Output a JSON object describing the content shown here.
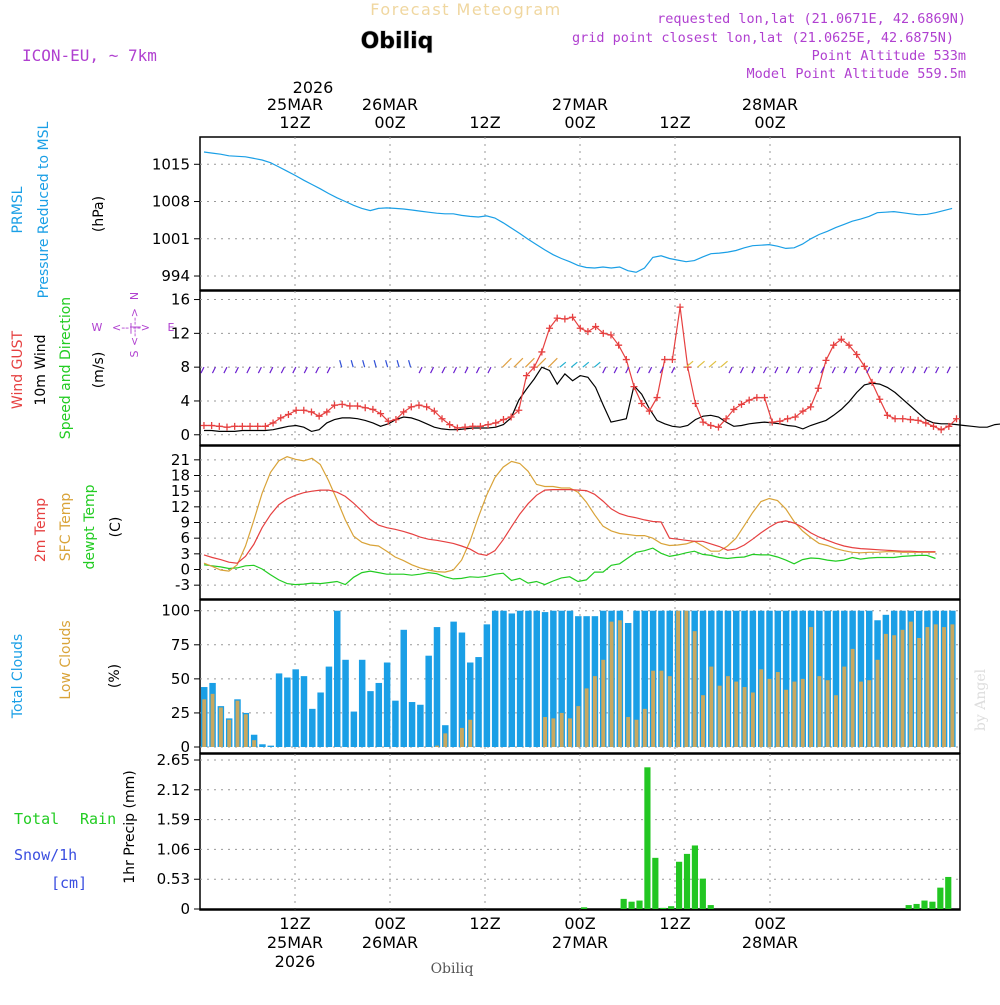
{
  "header": {
    "title": "Forecast Meteogram",
    "location": "Obiliq",
    "model": "ICON-EU, ~ 7km",
    "requested": "requested lon,lat (21.0671E, 42.6869N)",
    "gridpoint": "grid point closest lon,lat (21.0625E, 42.6875N)",
    "point_alt": "Point Altitude 533m",
    "model_alt": "Model Point Altitude 559.5m",
    "footer_location": "Obiliq",
    "credit": "by Angel"
  },
  "colors": {
    "pressure": "#1a9fe6",
    "gust": "#e64040",
    "wind": "#000000",
    "temp2m": "#e64040",
    "sfc": "#d9a338",
    "dew": "#22cc22",
    "total_cloud": "#1a9fe6",
    "low_cloud": "#c8a860",
    "rain": "#22c622",
    "snow": "#3a4ee0",
    "purple": "#b040d0"
  },
  "time_axis": {
    "top_year": "2026",
    "top_labels": [
      {
        "h": 12,
        "l1": "25MAR",
        "l2": "12Z"
      },
      {
        "h": 24,
        "l1": "26MAR",
        "l2": "00Z"
      },
      {
        "h": 36,
        "l1": "",
        "l2": "12Z"
      },
      {
        "h": 48,
        "l1": "27MAR",
        "l2": "00Z"
      },
      {
        "h": 60,
        "l1": "",
        "l2": "12Z"
      },
      {
        "h": 72,
        "l1": "28MAR",
        "l2": "00Z"
      }
    ],
    "bottom_labels": [
      {
        "h": 12,
        "l1": "12Z",
        "l2": "25MAR",
        "l3": "2026"
      },
      {
        "h": 24,
        "l1": "00Z",
        "l2": "26MAR",
        "l3": ""
      },
      {
        "h": 36,
        "l1": "12Z",
        "l2": "",
        "l3": ""
      },
      {
        "h": 48,
        "l1": "00Z",
        "l2": "27MAR",
        "l3": ""
      },
      {
        "h": 60,
        "l1": "12Z",
        "l2": "",
        "l3": ""
      },
      {
        "h": 72,
        "l1": "00Z",
        "l2": "28MAR",
        "l3": ""
      }
    ]
  },
  "chart_data": [
    {
      "type": "line",
      "name": "pressure",
      "label1": "PRMSL",
      "label2": "Pressure Reduced to MSL",
      "unit": "(hPa)",
      "ylim": [
        992.5,
        1019
      ],
      "yticks": [
        994,
        1001,
        1008,
        1015
      ],
      "x_start_hour": 0.5,
      "values": [
        1017.3,
        1017.1,
        1016.9,
        1016.6,
        1016.5,
        1016.4,
        1016.1,
        1015.8,
        1015.3,
        1014.5,
        1013.7,
        1012.9,
        1012.0,
        1011.2,
        1010.4,
        1009.5,
        1008.7,
        1008.0,
        1007.3,
        1006.7,
        1006.3,
        1006.7,
        1006.8,
        1006.7,
        1006.6,
        1006.4,
        1006.2,
        1006.0,
        1005.8,
        1005.7,
        1005.7,
        1005.4,
        1005.2,
        1005.1,
        1005.3,
        1004.9,
        1004.0,
        1003.0,
        1002.0,
        1000.9,
        999.9,
        998.9,
        998.0,
        997.3,
        996.7,
        996.0,
        995.6,
        995.5,
        995.7,
        995.5,
        995.7,
        995.0,
        994.7,
        995.5,
        997.5,
        997.8,
        997.3,
        997.0,
        996.7,
        996.9,
        997.6,
        998.2,
        998.3,
        998.5,
        998.8,
        999.3,
        999.7,
        999.8,
        999.9,
        999.6,
        999.2,
        999.3,
        1000.0,
        1001.0,
        1001.8,
        1002.4,
        1003.1,
        1003.7,
        1004.3,
        1004.7,
        1005.2,
        1005.9,
        1006.0,
        1006.1,
        1005.9,
        1005.7,
        1005.5,
        1005.6,
        1005.9,
        1006.3,
        1006.7
      ]
    },
    {
      "type": "line",
      "name": "wind",
      "label1": "Wind GUST",
      "label2": "10m Wind",
      "label3": "Speed and Direction",
      "unit": "(m/s)",
      "ylim": [
        -0.5,
        16.3
      ],
      "yticks": [
        0,
        4,
        8,
        12,
        16
      ],
      "compass": {
        "n": "N",
        "s": "S",
        "w": "W",
        "e": "E"
      },
      "x_start_hour": 0.5,
      "gust": [
        1.1,
        1.1,
        1.0,
        0.9,
        1.0,
        1.0,
        1.0,
        1.0,
        1.0,
        1.4,
        2.0,
        2.4,
        2.9,
        2.9,
        2.7,
        2.2,
        2.7,
        3.5,
        3.6,
        3.4,
        3.4,
        3.2,
        3.0,
        2.5,
        1.6,
        1.8,
        2.7,
        3.3,
        3.5,
        3.3,
        2.8,
        1.9,
        1.2,
        0.8,
        0.9,
        1.0,
        1.0,
        1.2,
        1.4,
        1.8,
        2.1,
        2.9,
        7.0,
        8.0,
        9.8,
        12.6,
        13.8,
        13.7,
        13.9,
        12.6,
        12.2,
        12.8,
        12.0,
        11.8,
        10.6,
        8.9,
        5.7,
        3.7,
        2.8,
        4.4,
        8.9,
        8.9,
        15.1,
        8.0,
        3.7,
        1.5,
        1.1,
        0.9,
        1.9,
        3.0,
        3.6,
        4.1,
        4.4,
        4.4,
        1.5,
        1.6,
        1.9,
        2.1,
        2.8,
        3.3,
        5.5,
        8.8,
        10.6,
        11.3,
        10.6,
        9.5,
        8.1,
        6.2,
        4.2,
        2.3,
        1.9,
        1.9,
        1.8,
        1.7,
        1.4,
        1.0,
        0.6,
        1.0,
        1.9
      ],
      "wind": [
        0.5,
        0.5,
        0.4,
        0.4,
        0.4,
        0.5,
        0.5,
        0.5,
        0.5,
        0.6,
        0.8,
        1.0,
        1.1,
        0.9,
        0.4,
        0.6,
        1.4,
        1.8,
        2.0,
        2.0,
        1.9,
        1.7,
        1.4,
        1.0,
        1.3,
        1.8,
        2.1,
        2.0,
        1.7,
        1.3,
        0.9,
        0.7,
        0.6,
        0.6,
        0.7,
        0.8,
        0.8,
        0.8,
        0.9,
        1.2,
        2.0,
        4.1,
        5.4,
        6.6,
        8.0,
        7.6,
        6.0,
        7.2,
        6.4,
        7.0,
        6.8,
        5.6,
        3.5,
        1.5,
        1.7,
        1.9,
        5.8,
        4.8,
        3.1,
        1.7,
        1.3,
        1.0,
        0.9,
        1.1,
        1.8,
        2.2,
        2.3,
        2.1,
        1.5,
        1.0,
        1.1,
        1.3,
        1.4,
        1.5,
        1.4,
        1.3,
        1.1,
        1.0,
        0.7,
        1.1,
        1.4,
        1.7,
        2.3,
        3.0,
        3.9,
        5.0,
        5.9,
        6.1,
        6.0,
        5.6,
        5.0,
        4.2,
        3.4,
        2.6,
        1.8,
        1.4,
        1.3,
        1.3,
        1.2,
        1.1,
        1.0,
        0.9,
        0.9,
        1.2,
        1.3
      ]
    },
    {
      "type": "line",
      "name": "temperature",
      "label1": "2m Temp",
      "label2": "SFC Temp",
      "label3": "dewpt Temp",
      "unit": "(C)",
      "ylim": [
        -4.5,
        22.5
      ],
      "yticks": [
        -3,
        0,
        3,
        6,
        9,
        12,
        15,
        18,
        21
      ],
      "x_start_hour": 0.5,
      "temp2m": [
        2.8,
        2.3,
        1.9,
        1.4,
        1.2,
        2.5,
        4.8,
        8.0,
        10.5,
        12.4,
        13.5,
        14.2,
        14.7,
        15.0,
        15.2,
        15.2,
        14.8,
        14.0,
        12.7,
        11.2,
        9.6,
        8.5,
        8.0,
        7.7,
        7.3,
        6.8,
        6.2,
        5.8,
        5.6,
        5.3,
        5.0,
        4.5,
        3.9,
        3.0,
        2.7,
        3.6,
        5.7,
        8.2,
        10.6,
        12.6,
        14.2,
        15.2,
        15.3,
        15.3,
        15.3,
        15.2,
        15.1,
        14.4,
        13.1,
        11.6,
        10.7,
        10.2,
        9.9,
        9.5,
        9.2,
        9.1,
        6.0,
        5.8,
        5.6,
        5.4,
        5.4,
        4.9,
        4.4,
        3.7,
        3.9,
        4.7,
        5.8,
        7.0,
        8.1,
        9.0,
        9.3,
        8.9,
        8.1,
        7.0,
        6.2,
        5.6,
        5.0,
        4.5,
        4.2,
        4.0,
        3.9,
        3.8,
        3.7,
        3.6,
        3.5,
        3.5,
        3.4,
        3.4,
        3.4
      ],
      "sfc": [
        1.2,
        0.6,
        -0.1,
        -0.3,
        0.9,
        4.5,
        9.4,
        14.6,
        18.6,
        20.8,
        21.6,
        21.1,
        20.8,
        21.3,
        20.1,
        17.0,
        13.3,
        9.5,
        6.4,
        5.2,
        4.7,
        4.5,
        3.5,
        2.4,
        1.7,
        0.9,
        0.3,
        -0.1,
        -0.4,
        -0.5,
        -0.1,
        1.8,
        5.4,
        10.0,
        14.2,
        17.6,
        19.6,
        20.7,
        20.3,
        18.8,
        16.3,
        15.9,
        15.9,
        15.6,
        15.6,
        14.8,
        12.9,
        10.5,
        8.3,
        7.4,
        6.9,
        6.7,
        6.5,
        6.5,
        6.0,
        5.0,
        4.6,
        4.7,
        4.9,
        5.4,
        4.5,
        3.5,
        3.5,
        4.5,
        6.0,
        8.4,
        10.9,
        13.0,
        13.6,
        13.2,
        11.6,
        9.2,
        7.4,
        6.1,
        5.0,
        4.6,
        4.0,
        3.6,
        3.3,
        3.2,
        3.3,
        3.3,
        3.4,
        3.4,
        3.3,
        3.3,
        3.3,
        3.3,
        3.3
      ],
      "dew": [
        0.9,
        0.7,
        0.5,
        0.2,
        0.3,
        0.7,
        0.8,
        0.1,
        -1.0,
        -2.0,
        -2.7,
        -2.9,
        -2.8,
        -2.6,
        -2.7,
        -2.5,
        -2.3,
        -2.9,
        -1.5,
        -0.6,
        -0.3,
        -0.6,
        -0.9,
        -0.9,
        -0.9,
        -1.1,
        -0.9,
        -0.6,
        -0.8,
        -1.4,
        -1.8,
        -1.7,
        -1.4,
        -1.5,
        -1.3,
        -0.9,
        -0.7,
        -2.1,
        -1.7,
        -2.6,
        -2.3,
        -2.9,
        -2.2,
        -1.6,
        -1.4,
        -2.3,
        -2.0,
        -0.5,
        -0.5,
        0.8,
        1.1,
        2.2,
        3.3,
        3.6,
        4.1,
        3.1,
        2.5,
        2.8,
        3.2,
        3.5,
        2.9,
        2.7,
        2.3,
        2.1,
        2.3,
        2.4,
        2.9,
        2.8,
        2.8,
        2.4,
        1.8,
        1.1,
        1.9,
        2.2,
        2.1,
        1.8,
        1.6,
        1.8,
        2.3,
        2.0,
        2.2,
        2.3,
        2.3,
        2.3,
        2.5,
        2.6,
        2.7,
        2.7,
        2.1
      ]
    },
    {
      "type": "bar",
      "name": "clouds",
      "label1": "Total Clouds",
      "label2": "Low Clouds",
      "unit": "(%)",
      "ylim": [
        0,
        102
      ],
      "yticks": [
        0,
        25,
        50,
        75,
        100
      ],
      "x_start_hour": 0,
      "total": [
        44,
        47,
        30,
        21,
        35,
        25,
        9,
        2,
        1,
        54,
        51,
        57,
        52,
        28,
        40,
        59,
        100,
        64,
        26,
        64,
        41,
        47,
        62,
        34,
        86,
        33,
        31,
        67,
        88,
        16,
        92,
        84,
        62,
        66,
        90,
        100,
        100,
        98,
        100,
        100,
        100,
        99,
        100,
        100,
        100,
        96,
        96,
        96,
        100,
        100,
        100,
        91,
        100,
        100,
        100,
        100,
        100,
        100,
        100,
        100,
        100,
        100,
        100,
        100,
        100,
        100,
        100,
        100,
        100,
        100,
        100,
        100,
        100,
        100,
        100,
        100,
        100,
        100,
        100,
        100,
        100,
        93,
        97,
        100,
        100,
        100,
        100,
        100,
        100,
        100,
        100,
        100,
        100
      ],
      "low": [
        35,
        39,
        29,
        20,
        34,
        24,
        5,
        0,
        0,
        0,
        0,
        0,
        0,
        0,
        0,
        0,
        0,
        0,
        0,
        0,
        0,
        0,
        0,
        0,
        0,
        0,
        0,
        0,
        1,
        10,
        0,
        14,
        20,
        0,
        0,
        0,
        0,
        0,
        0,
        0,
        0,
        22,
        21,
        25,
        21,
        30,
        43,
        52,
        64,
        92,
        93,
        22,
        20,
        28,
        56,
        56,
        52,
        100,
        100,
        85,
        38,
        59,
        45,
        52,
        48,
        44,
        40,
        57,
        50,
        55,
        42,
        48,
        50,
        88,
        52,
        49,
        38,
        59,
        72,
        48,
        49,
        64,
        83,
        82,
        86,
        92,
        80,
        88,
        90,
        88,
        90
      ]
    },
    {
      "type": "bar",
      "name": "precip",
      "label1": "Total",
      "label1b": "Rain",
      "label2": "Snow/1h",
      "label3": "[cm]",
      "unit": "1hr Precip (mm)",
      "ylim": [
        0,
        2.65
      ],
      "yticks": [
        0,
        0.53,
        1.06,
        1.59,
        2.12,
        2.65
      ],
      "ytick_labels": [
        "0",
        "0.53",
        "1.06",
        "1.59",
        "2.12",
        "2.65"
      ],
      "x_start_hour": 0,
      "rain": [
        0,
        0,
        0,
        0,
        0,
        0,
        0,
        0,
        0,
        0,
        0,
        0,
        0,
        0,
        0,
        0,
        0,
        0,
        0,
        0,
        0,
        0,
        0,
        0,
        0,
        0,
        0,
        0,
        0,
        0,
        0,
        0,
        0,
        0,
        0,
        0,
        0,
        0,
        0,
        0,
        0,
        0,
        0,
        0,
        0,
        0,
        0,
        0,
        0.03,
        0,
        0,
        0,
        0,
        0.18,
        0.13,
        0.15,
        2.52,
        0.91,
        0.02,
        0.05,
        0.84,
        0.98,
        1.13,
        0.54,
        0.07,
        0,
        0,
        0,
        0,
        0,
        0,
        0,
        0,
        0,
        0,
        0,
        0,
        0,
        0,
        0,
        0,
        0,
        0,
        0,
        0,
        0,
        0,
        0,
        0,
        0.07,
        0.09,
        0.15,
        0.13,
        0.38,
        0.57
      ],
      "snow": []
    }
  ]
}
